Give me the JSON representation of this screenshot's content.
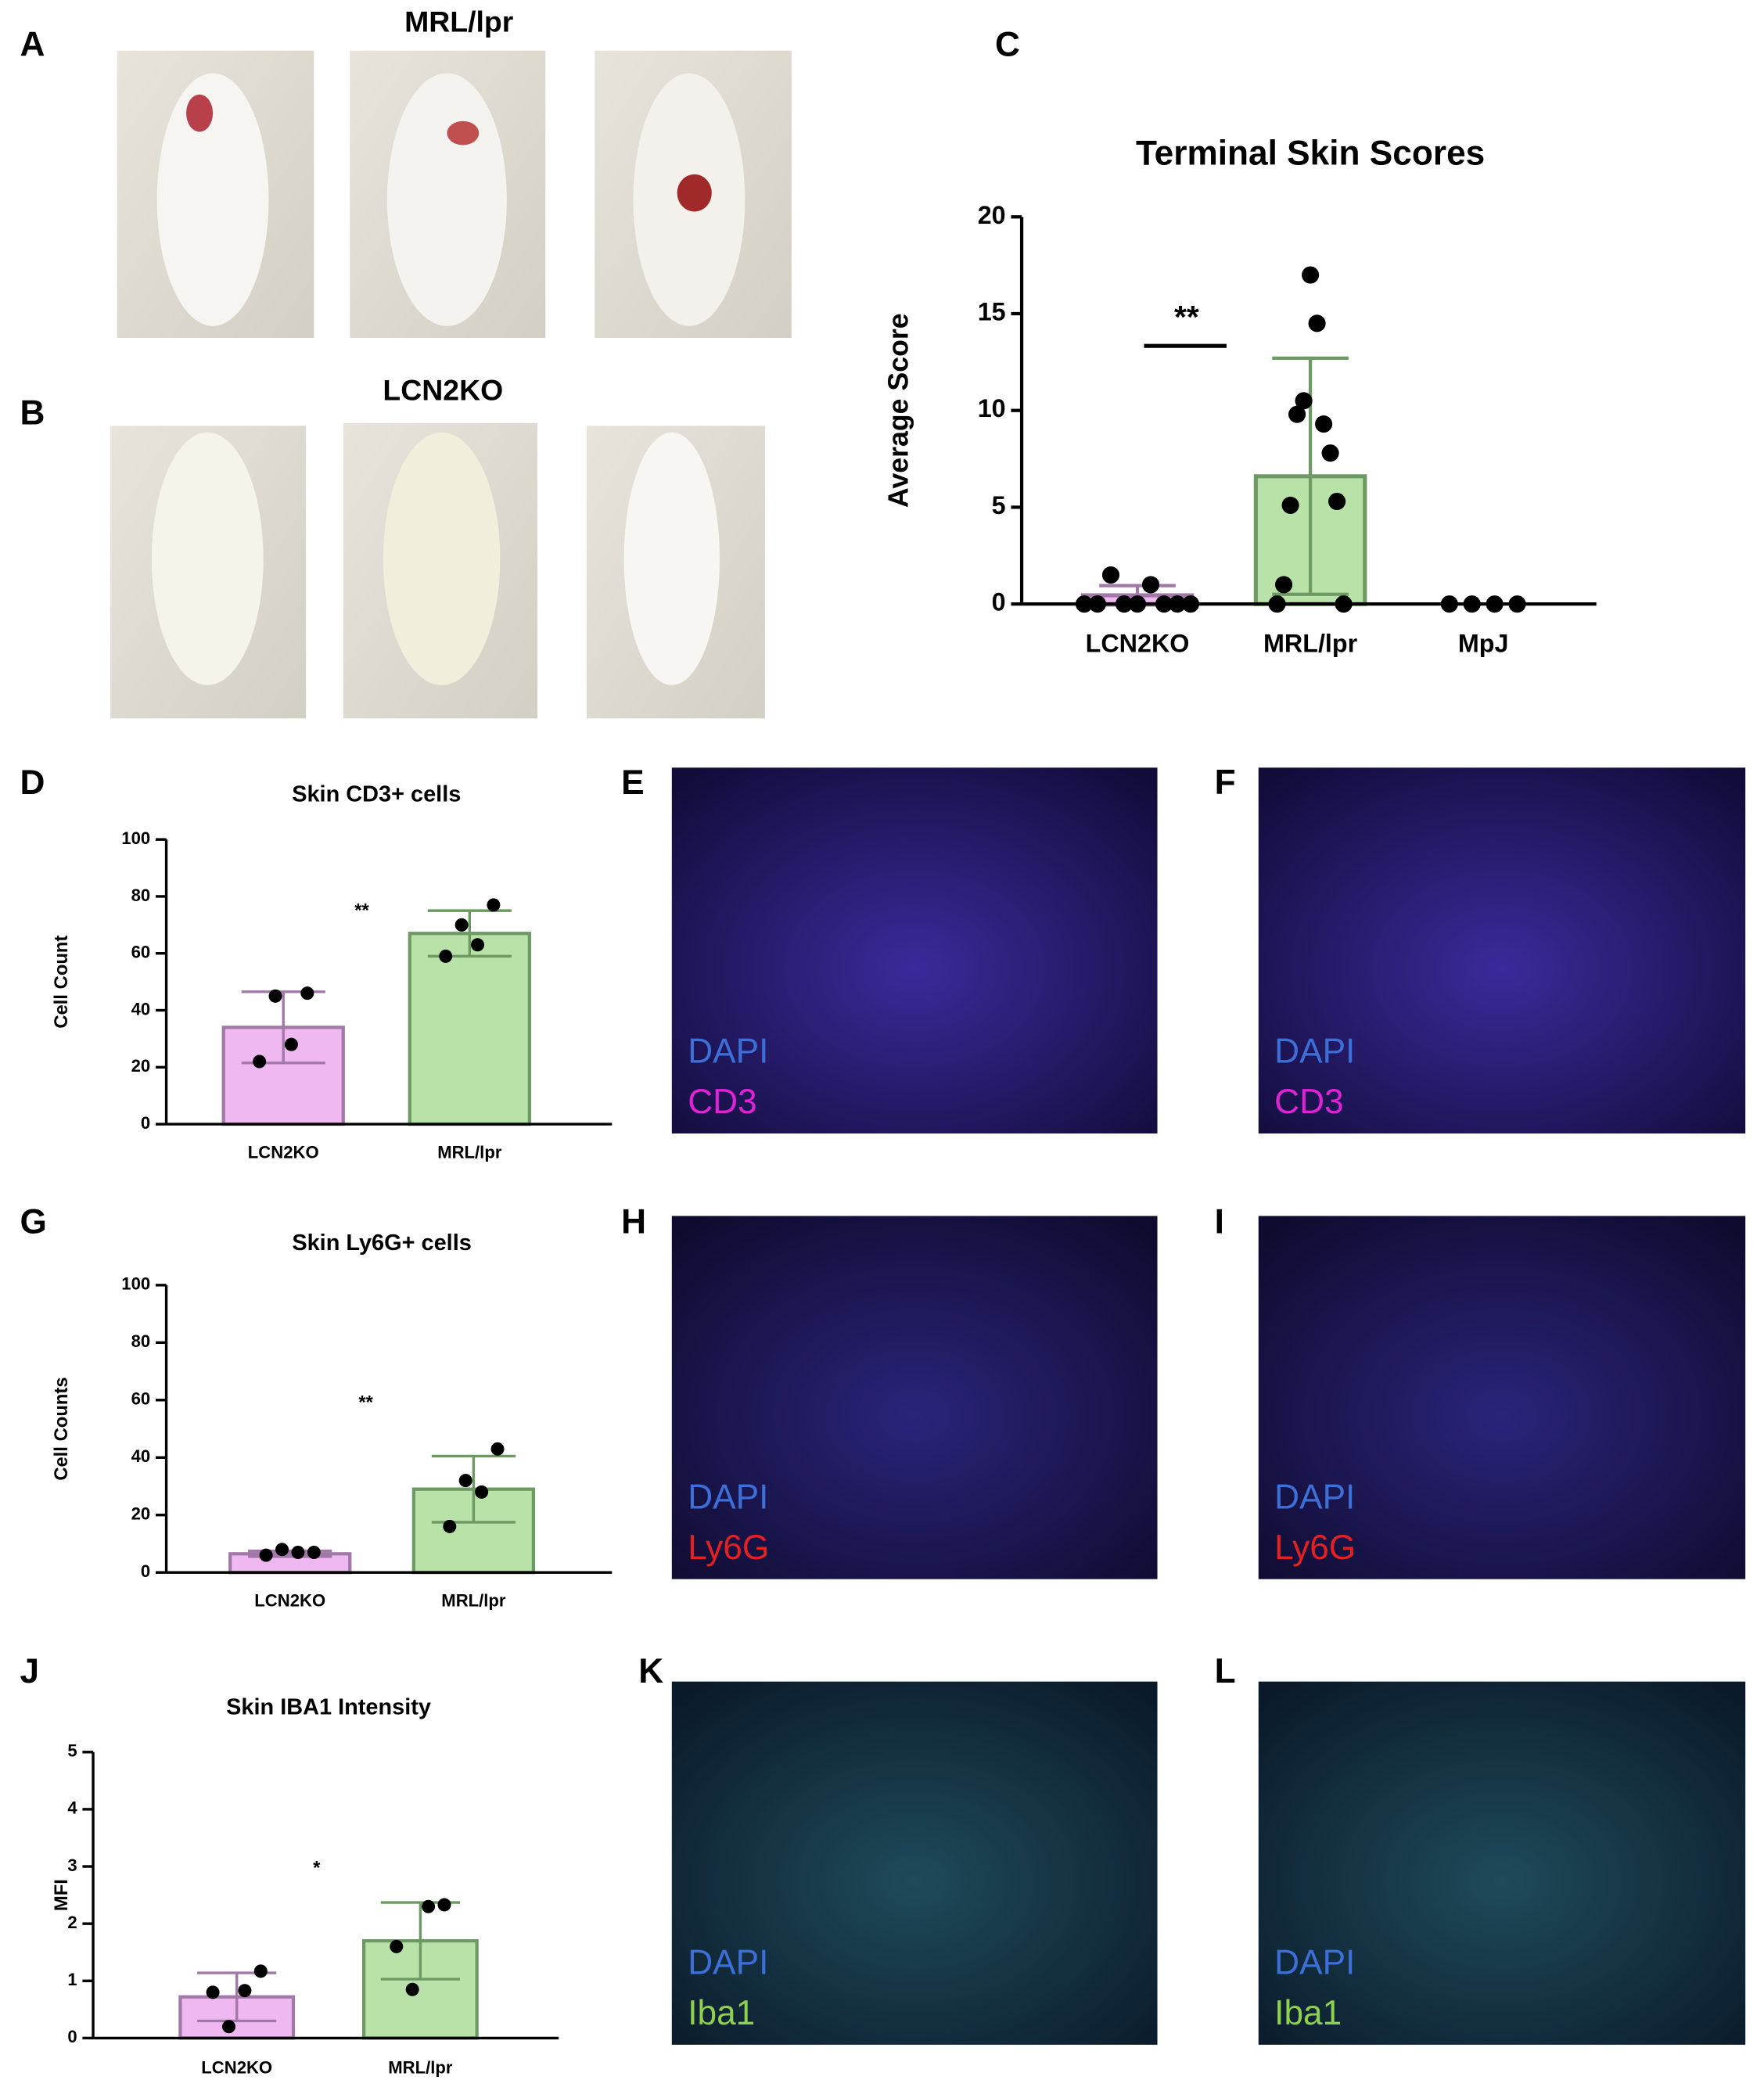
{
  "panel_labels": [
    "A",
    "B",
    "C",
    "D",
    "E",
    "F",
    "G",
    "H",
    "I",
    "J",
    "K",
    "L"
  ],
  "photo_titles": [
    "MRL/lpr",
    "LCN2KO"
  ],
  "micrographs": [
    {
      "stain_labels": [
        "DAPI",
        "CD3"
      ]
    },
    {
      "stain_labels": [
        "DAPI",
        "CD3"
      ]
    },
    {
      "stain_labels": [
        "DAPI",
        "Ly6G"
      ]
    },
    {
      "stain_labels": [
        "DAPI",
        "Ly6G"
      ]
    },
    {
      "stain_labels": [
        "DAPI",
        "Iba1"
      ]
    },
    {
      "stain_labels": [
        "DAPI",
        "Iba1"
      ]
    }
  ],
  "chart_data": [
    {
      "type": "bar",
      "title": "Terminal Skin Scores",
      "ylabel": "Average Score",
      "categories": [
        "LCN2KO",
        "MRL/lpr",
        "MpJ"
      ],
      "values": [
        0.45,
        6.6,
        0
      ],
      "errors": [
        0.5,
        6.1,
        0
      ],
      "points": [
        [
          0,
          0,
          1.5,
          0,
          0,
          1.0,
          0,
          0,
          0
        ],
        [
          0,
          1.0,
          5.1,
          9.8,
          10.5,
          17,
          14.5,
          9.3,
          7.8,
          5.3,
          0
        ],
        [
          0,
          0,
          0,
          0
        ]
      ],
      "colors": [
        "#f0b8f0",
        "#b9e2a9",
        "#b9e2a9"
      ],
      "edge_colors": [
        "#a278a8",
        "#6d9a63",
        "#6d9a63"
      ],
      "ylim": [
        0,
        20
      ],
      "yticks": [
        0,
        5,
        10,
        15,
        20
      ],
      "annotation": "**"
    },
    {
      "type": "bar",
      "title": "Skin CD3+ cells",
      "ylabel": "Cell Count",
      "categories": [
        "LCN2KO",
        "MRL/lpr"
      ],
      "values": [
        34,
        67
      ],
      "errors": [
        12.5,
        8
      ],
      "points": [
        [
          22,
          45,
          28,
          46
        ],
        [
          59,
          70,
          63,
          77
        ]
      ],
      "colors": [
        "#f0b8f0",
        "#b9e2a9"
      ],
      "edge_colors": [
        "#a278a8",
        "#6d9a63"
      ],
      "ylim": [
        0,
        100
      ],
      "yticks": [
        0,
        20,
        40,
        60,
        80,
        100
      ],
      "annotation": "**"
    },
    {
      "type": "bar",
      "title": "Skin Ly6G+ cells",
      "ylabel": "Cell Counts",
      "categories": [
        "LCN2KO",
        "MRL/lpr"
      ],
      "values": [
        6.5,
        29
      ],
      "errors": [
        1,
        11.5
      ],
      "points": [
        [
          6,
          8,
          7,
          7
        ],
        [
          16,
          32,
          28,
          43
        ]
      ],
      "colors": [
        "#f0b8f0",
        "#b9e2a9"
      ],
      "edge_colors": [
        "#a278a8",
        "#6d9a63"
      ],
      "ylim": [
        0,
        100
      ],
      "yticks": [
        0,
        20,
        40,
        60,
        80,
        100
      ],
      "annotation": "**"
    },
    {
      "type": "bar",
      "title": "Skin IBA1 Intensity",
      "ylabel": "MFI",
      "categories": [
        "LCN2KO",
        "MRL/lpr"
      ],
      "values": [
        0.72,
        1.7
      ],
      "errors": [
        0.42,
        0.67
      ],
      "points": [
        [
          0.8,
          0.2,
          0.83,
          1.17
        ],
        [
          1.6,
          0.85,
          2.3,
          2.33
        ]
      ],
      "colors": [
        "#f0b8f0",
        "#b9e2a9"
      ],
      "edge_colors": [
        "#a278a8",
        "#6d9a63"
      ],
      "ylim": [
        0,
        5
      ],
      "yticks": [
        0,
        1,
        2,
        3,
        4,
        5
      ],
      "annotation": "*"
    }
  ]
}
